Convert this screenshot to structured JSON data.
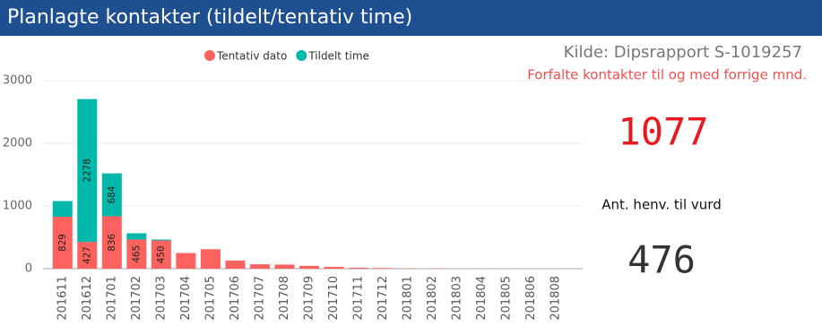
{
  "header": {
    "title": "Planlagte kontakter (tildelt/tentativ time)"
  },
  "chart_data": {
    "type": "stacked-bar",
    "categories": [
      "201611",
      "201612",
      "201701",
      "201702",
      "201703",
      "201704",
      "201705",
      "201706",
      "201707",
      "201708",
      "201709",
      "201710",
      "201711",
      "201712",
      "201801",
      "201802",
      "201803",
      "201804",
      "201805",
      "201806",
      "201808"
    ],
    "series": [
      {
        "name": "Tentativ dato",
        "color": "#fd625e",
        "values": [
          829,
          427,
          836,
          465,
          450,
          250,
          310,
          130,
          70,
          65,
          45,
          30,
          15,
          10,
          5,
          3,
          2,
          2,
          1,
          1,
          1
        ]
      },
      {
        "name": "Tildelt time",
        "color": "#01b8aa",
        "values": [
          250,
          2278,
          684,
          100,
          15,
          0,
          0,
          0,
          0,
          0,
          0,
          0,
          0,
          0,
          0,
          0,
          0,
          0,
          0,
          0,
          0
        ]
      }
    ],
    "ylim": [
      0,
      3000
    ],
    "yticks": [
      0,
      1000,
      2000,
      3000
    ],
    "grid": true
  },
  "panel": {
    "source": "Kilde: Dipsrapport S-1019257",
    "note": "Forfalte kontakter til og med forrige mnd.",
    "overdue": 1077,
    "referral_label": "Ant. henv. til vurd",
    "referrals": 476
  }
}
